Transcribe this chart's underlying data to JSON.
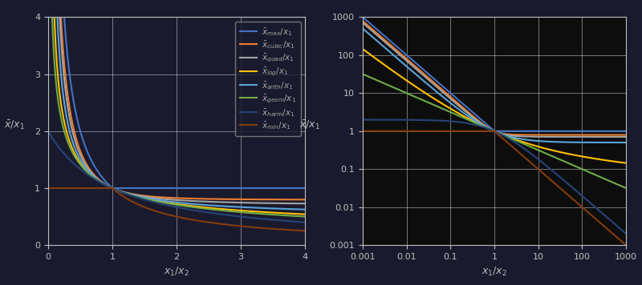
{
  "colors": {
    "max": "#4472c4",
    "cubic": "#ed7d31",
    "quad": "#a5a5a5",
    "log": "#ffc000",
    "arith": "#5ba3d9",
    "geom": "#70ad47",
    "harm": "#264478",
    "min": "#843c0c"
  },
  "lw": 1.5,
  "fig_bg": "#1a1a2e",
  "left_bg": "#1a1a2e",
  "right_bg": "#0d0d0d",
  "grid_color": "#ffffff",
  "grid_alpha": 0.5,
  "grid_lw": 0.6,
  "tick_color": "#c0c0c0",
  "spine_color": "#c0c0c0",
  "legend_bg": "#1a1a2e",
  "legend_edge": "#888888",
  "legend_text_color": "#aaaaaa",
  "legend_fontsize": 7.5,
  "axis_label_fontsize": 9,
  "tick_fontsize": 8
}
